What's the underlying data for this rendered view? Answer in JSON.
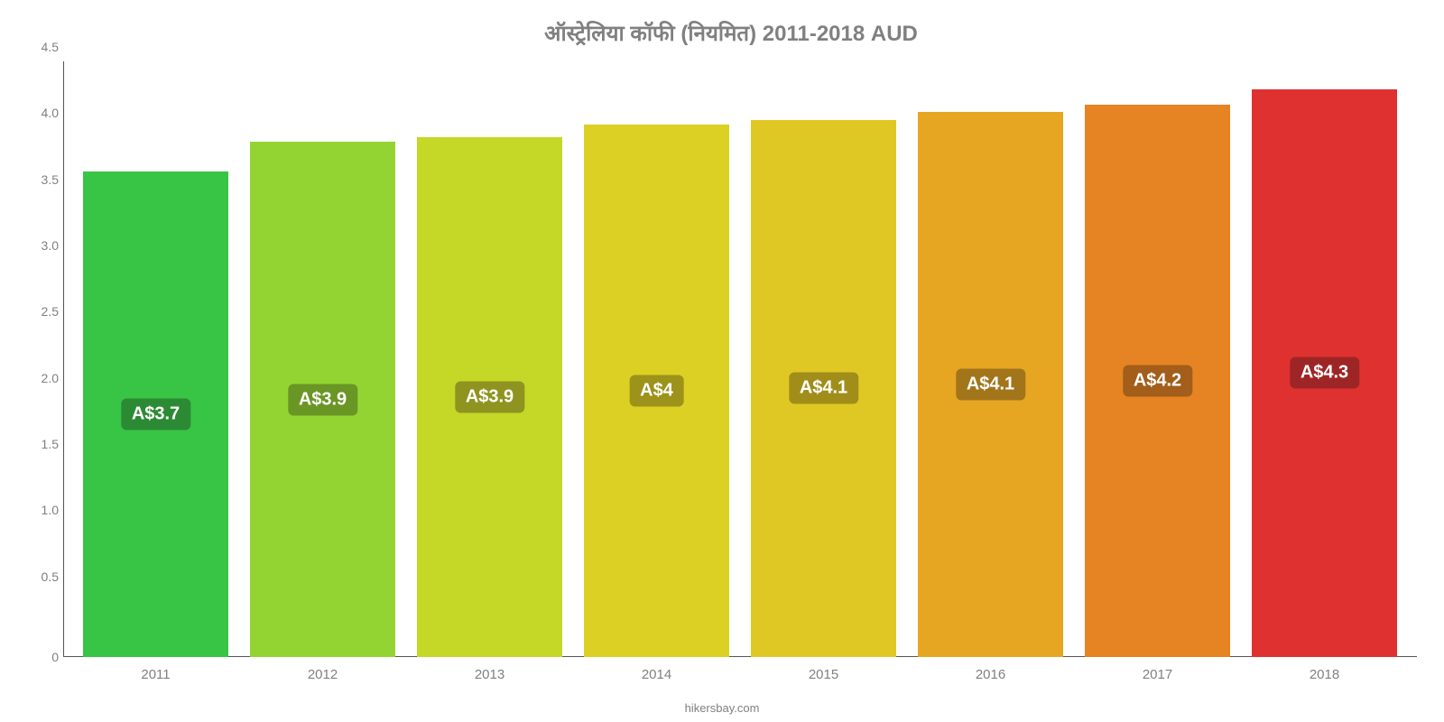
{
  "chart": {
    "type": "bar",
    "title": "ऑस्ट्रेलिया   कॉफी   (नियमित) 2011-2018 AUD",
    "title_color": "#808080",
    "title_fontsize": 24,
    "background_color": "#ffffff",
    "ylim": [
      0,
      4.5
    ],
    "ytick_step": 0.5,
    "yticks": [
      "0",
      "0.5",
      "1.0",
      "1.5",
      "2.0",
      "2.5",
      "3.0",
      "3.5",
      "4.0",
      "4.5"
    ],
    "ytick_color": "#808080",
    "ytick_fontsize": 14,
    "xtick_color": "#808080",
    "xtick_fontsize": 15,
    "axis_line_color": "#555555",
    "categories": [
      "2011",
      "2012",
      "2013",
      "2014",
      "2015",
      "2016",
      "2017",
      "2018"
    ],
    "values": [
      3.67,
      3.89,
      3.93,
      4.02,
      4.06,
      4.12,
      4.17,
      4.29
    ],
    "bar_labels": [
      "A$3.7",
      "A$3.9",
      "A$3.9",
      "A$4",
      "A$4.1",
      "A$4.1",
      "A$4.2",
      "A$4.3"
    ],
    "bar_colors": [
      "#38c445",
      "#94d432",
      "#c5d727",
      "#dcd024",
      "#e0c824",
      "#e6a622",
      "#e68322",
      "#e03131"
    ],
    "label_bg_colors": [
      "#2b8a33",
      "#6a9625",
      "#8e941f",
      "#9d921a",
      "#a18e1a",
      "#a2751a",
      "#a25e1a",
      "#9e2525"
    ],
    "label_text_color": "#ffffff",
    "label_fontsize": 20,
    "bar_width": 0.82,
    "attribution": "hikersbay.com",
    "attribution_color": "#808080",
    "attribution_fontsize": 13
  }
}
